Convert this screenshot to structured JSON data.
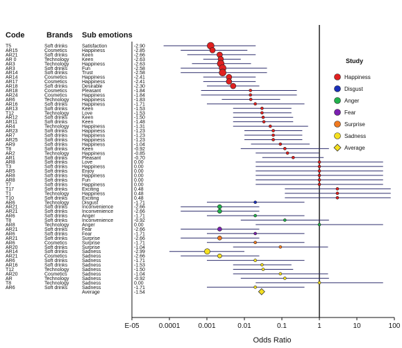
{
  "chart_data": {
    "type": "forest",
    "headers": {
      "code": "Code",
      "brands": "Brands",
      "sub": "Sub emotions"
    },
    "xlabel": "Odds Ratio",
    "x_scale": "log",
    "xlim": [
      1e-05,
      100
    ],
    "x_ticks": [
      {
        "value": 1e-05,
        "label": "E-05"
      },
      {
        "value": 0.0001,
        "label": "0.0001"
      },
      {
        "value": 0.001,
        "label": "0.001"
      },
      {
        "value": 0.01,
        "label": "0.01"
      },
      {
        "value": 0.1,
        "label": "0.1"
      },
      {
        "value": 1,
        "label": "1"
      },
      {
        "value": 10,
        "label": "10"
      },
      {
        "value": 100,
        "label": "100"
      }
    ],
    "reference_line": 1,
    "legend": {
      "title": "Study",
      "position": "right",
      "items": [
        {
          "label": "Happiness",
          "color": "#e02020",
          "shape": "circle"
        },
        {
          "label": "Disgust",
          "color": "#1a2fb8",
          "shape": "circle"
        },
        {
          "label": "Anger",
          "color": "#22b14c",
          "shape": "circle"
        },
        {
          "label": "Fear",
          "color": "#7a1fb0",
          "shape": "circle"
        },
        {
          "label": "Surprise",
          "color": "#f07a20",
          "shape": "circle"
        },
        {
          "label": "Sadness",
          "color": "#f5e020",
          "shape": "circle"
        },
        {
          "label": "Average",
          "color": "#f5e020",
          "shape": "diamond"
        }
      ]
    },
    "rows": [
      {
        "code": "T5",
        "brand": "Soft drinks",
        "sub": "Satisfaction",
        "value": "-2.90",
        "or": 0.00126,
        "lo": 7e-05,
        "hi": 0.02,
        "group": "Happiness",
        "size": 5
      },
      {
        "code": "AR15",
        "brand": "Cosmetics",
        "sub": "Happiness",
        "value": "-2.85",
        "or": 0.00141,
        "lo": 0.0002,
        "hi": 0.012,
        "group": "Happiness",
        "size": 4
      },
      {
        "code": "AR21",
        "brand": "Soft drinks",
        "sub": "Keen",
        "value": "-2.66",
        "or": 0.00219,
        "lo": 0.0003,
        "hi": 0.02,
        "group": "Happiness",
        "size": 4
      },
      {
        "code": "AR 0",
        "brand": "Technology",
        "sub": "Keen",
        "value": "-2.63",
        "or": 0.00234,
        "lo": 0.0008,
        "hi": 0.008,
        "group": "Happiness",
        "size": 4
      },
      {
        "code": "AR3",
        "brand": "Technology",
        "sub": "Happiness",
        "value": "-2.63",
        "or": 0.00234,
        "lo": 0.0004,
        "hi": 0.015,
        "group": "Happiness",
        "size": 5
      },
      {
        "code": "AR3",
        "brand": "Soft drinks",
        "sub": "Fun",
        "value": "-2.58",
        "or": 0.00263,
        "lo": 0.0002,
        "hi": 0.04,
        "group": "Happiness",
        "size": 5
      },
      {
        "code": "AR14",
        "brand": "Soft drinks",
        "sub": "Trust",
        "value": "-2.58",
        "or": 0.00263,
        "lo": 0.0002,
        "hi": 0.04,
        "group": "Happiness",
        "size": 5
      },
      {
        "code": "AR14",
        "brand": "Cosmetics",
        "sub": "Happiness",
        "value": "-2.41",
        "or": 0.00389,
        "lo": 0.0008,
        "hi": 0.02,
        "group": "Happiness",
        "size": 4
      },
      {
        "code": "AR17",
        "brand": "Cosmetics",
        "sub": "Happiness",
        "value": "-2.41",
        "or": 0.00389,
        "lo": 0.0008,
        "hi": 0.02,
        "group": "Happiness",
        "size": 4
      },
      {
        "code": "AR18",
        "brand": "Soft drinks",
        "sub": "Desirable",
        "value": "-2.30",
        "or": 0.00501,
        "lo": 0.001,
        "hi": 0.025,
        "group": "Happiness",
        "size": 4
      },
      {
        "code": "AR18",
        "brand": "Cosmetics",
        "sub": "Pleasant",
        "value": "-1.84",
        "or": 0.0145,
        "lo": 0.0007,
        "hi": 0.25,
        "group": "Happiness",
        "size": 2
      },
      {
        "code": "AR24",
        "brand": "Cosmetics",
        "sub": "Happiness",
        "value": "-1.84",
        "or": 0.0145,
        "lo": 0.0007,
        "hi": 0.25,
        "group": "Happiness",
        "size": 2
      },
      {
        "code": "AR6",
        "brand": "Technology",
        "sub": "Happiness",
        "value": "-1.83",
        "or": 0.0148,
        "lo": 0.0025,
        "hi": 0.09,
        "group": "Happiness",
        "size": 2
      },
      {
        "code": "AR16",
        "brand": "Soft drinks",
        "sub": "Happiness",
        "value": "-1.71",
        "or": 0.0195,
        "lo": 0.001,
        "hi": 0.4,
        "group": "Happiness",
        "size": 2
      },
      {
        "code": "AR13",
        "brand": "Soft drinks",
        "sub": "Keen",
        "value": "-1.53",
        "or": 0.0295,
        "lo": 0.005,
        "hi": 0.18,
        "group": "Happiness",
        "size": 2
      },
      {
        "code": "T12",
        "brand": "Technology",
        "sub": "Love",
        "value": "-1.53",
        "or": 0.0295,
        "lo": 0.005,
        "hi": 0.18,
        "group": "Happiness",
        "size": 2
      },
      {
        "code": "AR12",
        "brand": "Soft drinks",
        "sub": "Keen",
        "value": "-1.50",
        "or": 0.0316,
        "lo": 0.005,
        "hi": 0.2,
        "group": "Happiness",
        "size": 2
      },
      {
        "code": "AR11",
        "brand": "Soft drinks",
        "sub": "Keen",
        "value": "-1.48",
        "or": 0.0331,
        "lo": 0.005,
        "hi": 0.2,
        "group": "Happiness",
        "size": 2
      },
      {
        "code": "AR4",
        "brand": "Technology",
        "sub": "Happiness",
        "value": "-1.31",
        "or": 0.049,
        "lo": 0.005,
        "hi": 0.5,
        "group": "Happiness",
        "size": 2
      },
      {
        "code": "AR23",
        "brand": "Soft drinks",
        "sub": "Happiness",
        "value": "-1.23",
        "or": 0.0589,
        "lo": 0.01,
        "hi": 0.35,
        "group": "Happiness",
        "size": 2
      },
      {
        "code": "AR7",
        "brand": "Soft drinks",
        "sub": "Happiness",
        "value": "-1.23",
        "or": 0.0589,
        "lo": 0.01,
        "hi": 0.35,
        "group": "Happiness",
        "size": 2
      },
      {
        "code": "AR25",
        "brand": "Soft drinks",
        "sub": "Happiness",
        "value": "-1.23",
        "or": 0.0589,
        "lo": 0.01,
        "hi": 0.35,
        "group": "Happiness",
        "size": 2
      },
      {
        "code": "AR9",
        "brand": "Soft drinks",
        "sub": "Happiness",
        "value": "-1.04",
        "or": 0.0912,
        "lo": 0.015,
        "hi": 0.55,
        "group": "Happiness",
        "size": 2
      },
      {
        "code": "T8",
        "brand": "Soft drinks",
        "sub": "Keen",
        "value": "-0.92",
        "or": 0.12,
        "lo": 0.008,
        "hi": 1.8,
        "group": "Happiness",
        "size": 2
      },
      {
        "code": "AR2",
        "brand": "Technology",
        "sub": "Happiness",
        "value": "-0.85",
        "or": 0.141,
        "lo": 0.02,
        "hi": 1.0,
        "group": "Happiness",
        "size": 2
      },
      {
        "code": "AR1",
        "brand": "Soft drinks",
        "sub": "Pleasant",
        "value": "-0.70",
        "or": 0.2,
        "lo": 0.03,
        "hi": 1.3,
        "group": "Happiness",
        "size": 2
      },
      {
        "code": "AR8",
        "brand": "Soft drinks",
        "sub": "Love",
        "value": "0.00",
        "or": 1.0,
        "lo": 0.02,
        "hi": 50,
        "group": "Happiness",
        "size": 2
      },
      {
        "code": "T3",
        "brand": "Soft drinks",
        "sub": "Happiness",
        "value": "0.00",
        "or": 1.0,
        "lo": 0.02,
        "hi": 50,
        "group": "Happiness",
        "size": 2
      },
      {
        "code": "AR5",
        "brand": "Soft drinks",
        "sub": "Enjoy",
        "value": "0.00",
        "or": 1.0,
        "lo": 0.02,
        "hi": 50,
        "group": "Happiness",
        "size": 2
      },
      {
        "code": "AR8",
        "brand": "Soft drinks",
        "sub": "Happiness",
        "value": "0.00",
        "or": 1.0,
        "lo": 0.02,
        "hi": 50,
        "group": "Happiness",
        "size": 2
      },
      {
        "code": "AR8",
        "brand": "Soft drinks",
        "sub": "Fun",
        "value": "0.00",
        "or": 1.0,
        "lo": 0.02,
        "hi": 50,
        "group": "Happiness",
        "size": 2
      },
      {
        "code": "T7",
        "brand": "Soft drinks",
        "sub": "Happiness",
        "value": "0.00",
        "or": 1.0,
        "lo": 0.02,
        "hi": 50,
        "group": "Happiness",
        "size": 2
      },
      {
        "code": "T17",
        "brand": "Soft drinks",
        "sub": "Exciting",
        "value": "0.48",
        "or": 3.02,
        "lo": 0.12,
        "hi": 80,
        "group": "Happiness",
        "size": 2
      },
      {
        "code": "T1",
        "brand": "Technology",
        "sub": "Happiness",
        "value": "0.48",
        "or": 3.02,
        "lo": 0.12,
        "hi": 80,
        "group": "Happiness",
        "size": 2
      },
      {
        "code": "T10",
        "brand": "Soft drinks",
        "sub": "Exciting",
        "value": "0.48",
        "or": 3.02,
        "lo": 0.12,
        "hi": 80,
        "group": "Happiness",
        "size": 2
      },
      {
        "code": "AR6",
        "brand": "Technology",
        "sub": "Disgust",
        "value": "-1.71",
        "or": 0.0195,
        "lo": 0.001,
        "hi": 0.4,
        "group": "Disgust",
        "size": 2
      },
      {
        "code": "AR21",
        "brand": "Soft drinks",
        "sub": "Inconvenience",
        "value": "-2.66",
        "or": 0.00219,
        "lo": 0.0002,
        "hi": 0.025,
        "group": "Anger",
        "size": 3
      },
      {
        "code": "AR21",
        "brand": "Soft drinks",
        "sub": "Inconvenience",
        "value": "-2.66",
        "or": 0.00219,
        "lo": 0.0002,
        "hi": 0.025,
        "group": "Anger",
        "size": 3
      },
      {
        "code": "AR6",
        "brand": "Soft drinks",
        "sub": "Anger",
        "value": "-1.71",
        "or": 0.0195,
        "lo": 0.001,
        "hi": 0.4,
        "group": "Anger",
        "size": 2
      },
      {
        "code": "T8",
        "brand": "Soft drinks",
        "sub": "Inconvenience",
        "value": "-0.92",
        "or": 0.12,
        "lo": 0.008,
        "hi": 1.8,
        "group": "Anger",
        "size": 2
      },
      {
        "code": "AR8",
        "brand": "Technology",
        "sub": "Anger",
        "value": "0.00",
        "or": 1.0,
        "lo": 0.02,
        "hi": 50,
        "group": "Anger",
        "size": 2
      },
      {
        "code": "AR21",
        "brand": "Soft drinks",
        "sub": "Fear",
        "value": "-2.66",
        "or": 0.00219,
        "lo": 0.0002,
        "hi": 0.025,
        "group": "Fear",
        "size": 3
      },
      {
        "code": "AR6",
        "brand": "Soft drinks",
        "sub": "Fear",
        "value": "-1.71",
        "or": 0.0195,
        "lo": 0.001,
        "hi": 0.4,
        "group": "Fear",
        "size": 2
      },
      {
        "code": "AR21",
        "brand": "Soft drinks",
        "sub": "Surprise",
        "value": "-2.66",
        "or": 0.00219,
        "lo": 0.0002,
        "hi": 0.025,
        "group": "Surprise",
        "size": 3
      },
      {
        "code": "AR6",
        "brand": "Cosmetics",
        "sub": "Surprise",
        "value": "-1.71",
        "or": 0.0195,
        "lo": 0.001,
        "hi": 0.4,
        "group": "Surprise",
        "size": 2
      },
      {
        "code": "AR20",
        "brand": "Soft drinks",
        "sub": "Surprise",
        "value": "-1.04",
        "or": 0.0912,
        "lo": 0.005,
        "hi": 1.7,
        "group": "Surprise",
        "size": 2
      },
      {
        "code": "AR14",
        "brand": "Soft drinks",
        "sub": "Sadness",
        "value": "-2.99",
        "or": 0.00102,
        "lo": 0.0001,
        "hi": 0.01,
        "group": "Sadness",
        "size": 4
      },
      {
        "code": "AR21",
        "brand": "Cosmetics",
        "sub": "Sadness",
        "value": "-2.66",
        "or": 0.00219,
        "lo": 0.0002,
        "hi": 0.025,
        "group": "Sadness",
        "size": 3
      },
      {
        "code": "AR6",
        "brand": "Soft drinks",
        "sub": "Sadness",
        "value": "-1.71",
        "or": 0.0195,
        "lo": 0.001,
        "hi": 0.4,
        "group": "Sadness",
        "size": 2
      },
      {
        "code": "AR16",
        "brand": "Soft drinks",
        "sub": "Sadness",
        "value": "-1.53",
        "or": 0.0295,
        "lo": 0.005,
        "hi": 0.18,
        "group": "Sadness",
        "size": 2
      },
      {
        "code": "T12",
        "brand": "Technology",
        "sub": "Sadness",
        "value": "-1.50",
        "or": 0.0316,
        "lo": 0.005,
        "hi": 0.2,
        "group": "Sadness",
        "size": 2
      },
      {
        "code": "AR20",
        "brand": "Cosmetics",
        "sub": "Sadness",
        "value": "-1.04",
        "or": 0.0912,
        "lo": 0.005,
        "hi": 1.7,
        "group": "Sadness",
        "size": 2
      },
      {
        "code": "AR",
        "brand": "Technology",
        "sub": "Sadness",
        "value": "-0.92",
        "or": 0.12,
        "lo": 0.008,
        "hi": 1.8,
        "group": "Sadness",
        "size": 2
      },
      {
        "code": "T8",
        "brand": "Technology",
        "sub": "Sadness",
        "value": "0.00",
        "or": 1.0,
        "lo": 0.02,
        "hi": 50,
        "group": "Sadness",
        "size": 2
      },
      {
        "code": "AR6",
        "brand": "Soft drinks",
        "sub": "Sadness",
        "value": "-1.71",
        "or": 0.0195,
        "lo": 0.001,
        "hi": 0.4,
        "group": "Sadness",
        "size": 2
      },
      {
        "code": "",
        "brand": "",
        "sub": "Average",
        "value": "-1.54",
        "or": 0.0288,
        "lo": 0.0288,
        "hi": 0.0288,
        "group": "Average",
        "size": 4
      }
    ]
  }
}
